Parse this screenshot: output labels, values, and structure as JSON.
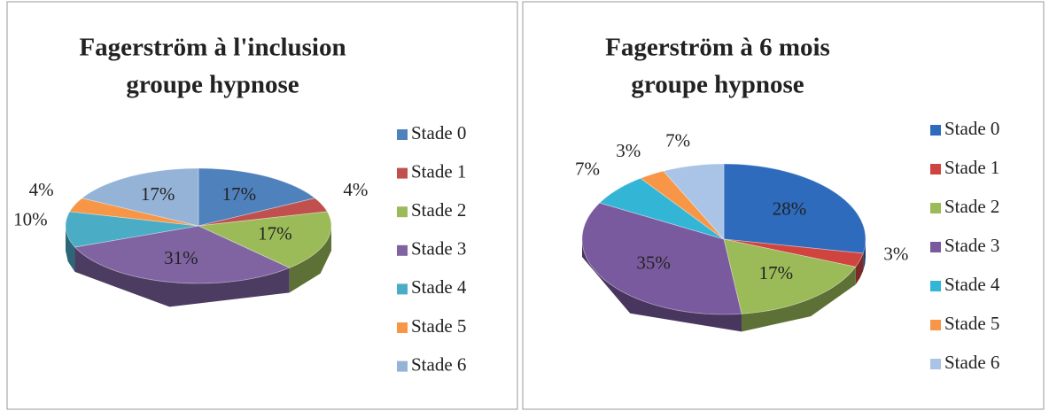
{
  "chart_data": [
    {
      "type": "pie3d",
      "title": [
        "Fagerström à l'inclusion",
        "groupe hypnose"
      ],
      "categories": [
        "Stade 0",
        "Stade 1",
        "Stade 2",
        "Stade 3",
        "Stade 4",
        "Stade 5",
        "Stade 6"
      ],
      "values": [
        17,
        4,
        17,
        31,
        10,
        4,
        17
      ],
      "value_labels": [
        "17%",
        "4%",
        "17%",
        "31%",
        "10%",
        "4%",
        "17%"
      ],
      "colors": [
        "#4f81bd",
        "#c0504d",
        "#9bbb59",
        "#8064a2",
        "#4bacc6",
        "#f79646",
        "#95b3d7"
      ],
      "legend": "right"
    },
    {
      "type": "pie3d",
      "title": [
        "Fagerström à 6 mois",
        "groupe hypnose"
      ],
      "categories": [
        "Stade 0",
        "Stade 1",
        "Stade 2",
        "Stade 3",
        "Stade 4",
        "Stade 5",
        "Stade 6"
      ],
      "values": [
        28,
        3,
        17,
        35,
        7,
        3,
        7
      ],
      "value_labels": [
        "28%",
        "3%",
        "17%",
        "35%",
        "7%",
        "3%",
        "7%"
      ],
      "colors": [
        "#2e6bbd",
        "#d0443f",
        "#9bbb59",
        "#7a5a9e",
        "#33b5d6",
        "#f79646",
        "#a9c4e6"
      ],
      "legend": "right"
    }
  ]
}
